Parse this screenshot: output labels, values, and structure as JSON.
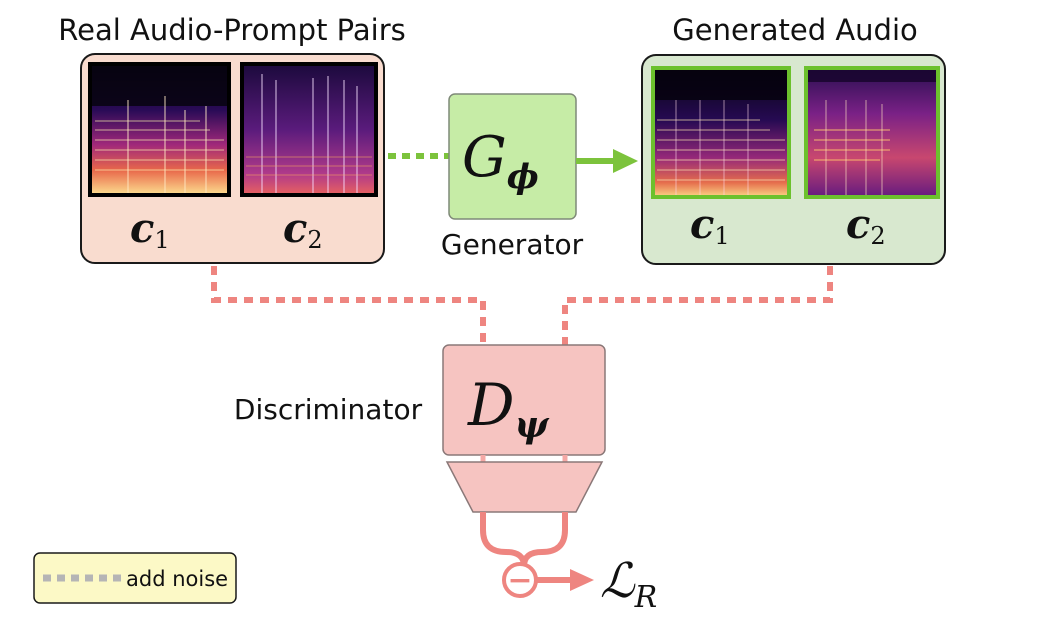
{
  "labels": {
    "real_pairs_title": "Real Audio-Prompt Pairs",
    "generated_title": "Generated Audio",
    "generator_label": "Generator",
    "discriminator_label": "Discriminator",
    "legend_text": "add noise"
  },
  "math": {
    "generator_symbol": "G",
    "generator_subscript": "ϕ",
    "discriminator_symbol": "D",
    "discriminator_subscript": "ψ",
    "loss_symbol": "ℒ",
    "loss_subscript": "R",
    "minus_sign": "−"
  },
  "prompts": {
    "real": [
      {
        "symbol": "c",
        "index": "1"
      },
      {
        "symbol": "c",
        "index": "2"
      }
    ],
    "generated": [
      {
        "symbol": "c",
        "index": "1"
      },
      {
        "symbol": "c",
        "index": "2"
      }
    ]
  },
  "colors": {
    "real_box_fill": "#f9dccf",
    "generated_box_fill": "#d8e8cf",
    "generator_fill": "#c6eca6",
    "discriminator_fill": "#f6c4c1",
    "discriminator_edge": "#f4a8a5",
    "noise_path": "#ee8580",
    "generator_arrow": "#7cc33c",
    "spectrogram_border_generated": "#6cc12d",
    "legend_fill": "#fcf9c6",
    "legend_dash": "#b5b5b5"
  }
}
